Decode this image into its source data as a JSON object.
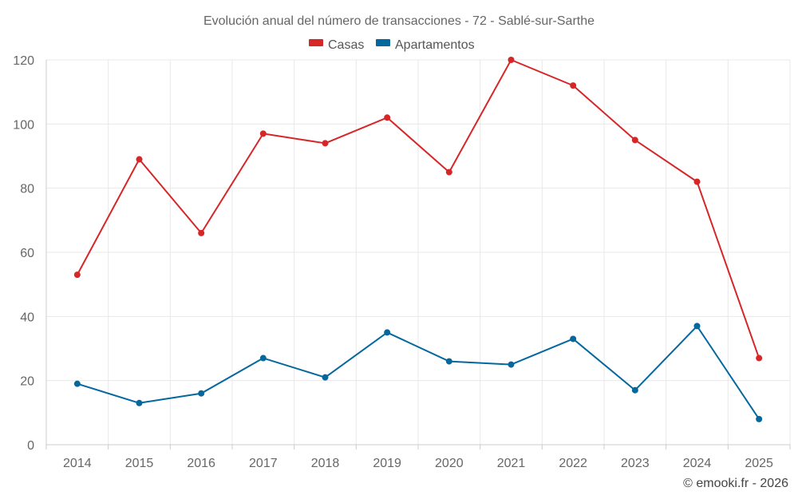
{
  "chart_data": {
    "type": "line",
    "title": "Evolución anual del número de transacciones - 72 - Sablé-sur-Sarthe",
    "categories": [
      "2014",
      "2015",
      "2016",
      "2017",
      "2018",
      "2019",
      "2020",
      "2021",
      "2022",
      "2023",
      "2024",
      "2025"
    ],
    "series": [
      {
        "name": "Casas",
        "color": "#d62728",
        "values": [
          53,
          89,
          66,
          97,
          94,
          102,
          85,
          120,
          112,
          95,
          82,
          27
        ]
      },
      {
        "name": "Apartamentos",
        "color": "#04689e",
        "values": [
          19,
          13,
          16,
          27,
          21,
          35,
          26,
          25,
          33,
          17,
          37,
          8
        ]
      }
    ],
    "xlabel": "",
    "ylabel": "",
    "ylim": [
      0,
      120
    ],
    "yticks": [
      0,
      20,
      40,
      60,
      80,
      100,
      120
    ],
    "grid": true,
    "legend_position": "top-center"
  },
  "credit": "© emooki.fr - 2026"
}
